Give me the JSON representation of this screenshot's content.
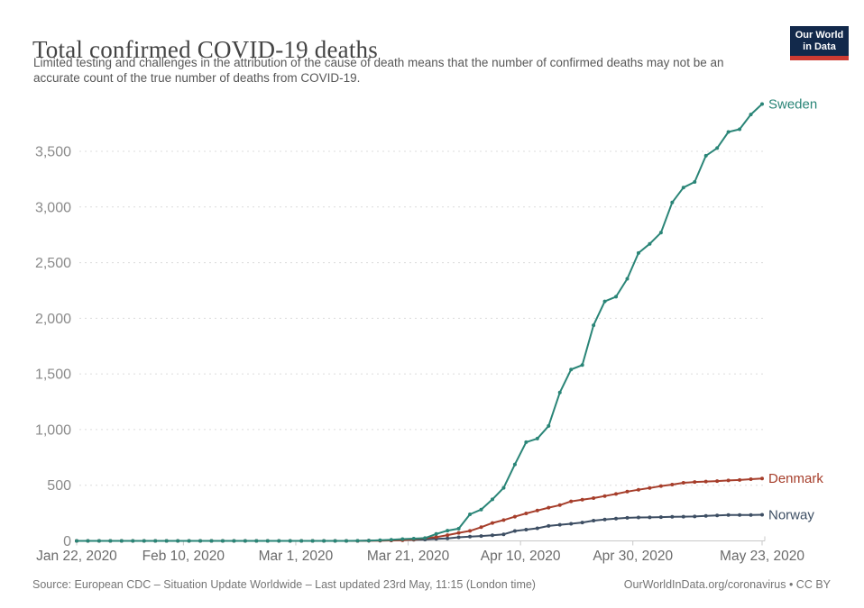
{
  "header": {
    "title": "Total confirmed COVID-19 deaths",
    "subtitle": "Limited testing and challenges in the attribution of the cause of death means that the number of confirmed deaths may not be an accurate count of the true number of deaths from COVID-19."
  },
  "logo": {
    "line1": "Our World",
    "line2": "in Data",
    "bg_color": "#12294B",
    "stripe_color": "#CE3B32"
  },
  "footer": {
    "source": "Source: European CDC – Situation Update Worldwide – Last updated 23rd May, 11:15 (London time)",
    "attribution": "OurWorldInData.org/coronavirus • CC BY"
  },
  "chart_data": {
    "type": "line",
    "title": "Total confirmed COVID-19 deaths",
    "xlabel": "",
    "ylabel": "",
    "ylim": [
      0,
      3500
    ],
    "grid": true,
    "legend_position": "end-of-line",
    "y_ticks": [
      0,
      500,
      1000,
      1500,
      2000,
      2500,
      3000,
      3500
    ],
    "y_tick_labels": [
      "0",
      "500",
      "1,000",
      "1,500",
      "2,000",
      "2,500",
      "3,000",
      "3,500"
    ],
    "x_label_dates": [
      "Jan 22, 2020",
      "Feb 10, 2020",
      "Mar 1, 2020",
      "Mar 21, 2020",
      "Apr 10, 2020",
      "Apr 30, 2020",
      "May 23, 2020"
    ],
    "x_label_days": [
      0,
      19,
      39,
      59,
      79,
      99,
      122
    ],
    "x_range_days": [
      0,
      122
    ],
    "days_since_jan22": [
      0,
      2,
      4,
      6,
      8,
      10,
      12,
      14,
      16,
      18,
      20,
      22,
      24,
      26,
      28,
      30,
      32,
      34,
      36,
      38,
      40,
      42,
      44,
      46,
      48,
      50,
      52,
      54,
      56,
      58,
      60,
      62,
      64,
      66,
      68,
      70,
      72,
      74,
      76,
      78,
      80,
      82,
      84,
      86,
      88,
      90,
      92,
      94,
      96,
      98,
      100,
      102,
      104,
      106,
      108,
      110,
      112,
      114,
      116,
      118,
      120,
      122
    ],
    "series": [
      {
        "name": "Sweden",
        "color": "#2A8577",
        "values": [
          0,
          0,
          0,
          0,
          0,
          0,
          0,
          0,
          0,
          0,
          0,
          0,
          0,
          0,
          0,
          0,
          0,
          0,
          0,
          0,
          0,
          0,
          0,
          0,
          0,
          1,
          2,
          6,
          10,
          16,
          20,
          25,
          62,
          92,
          110,
          239,
          282,
          373,
          477,
          687,
          887,
          919,
          1033,
          1333,
          1540,
          1580,
          1937,
          2152,
          2194,
          2355,
          2586,
          2669,
          2769,
          3040,
          3175,
          3225,
          3460,
          3529,
          3674,
          3698,
          3831,
          3925
        ]
      },
      {
        "name": "Denmark",
        "color": "#A63E2B",
        "values": [
          0,
          0,
          0,
          0,
          0,
          0,
          0,
          0,
          0,
          0,
          0,
          0,
          0,
          0,
          0,
          0,
          0,
          0,
          0,
          0,
          0,
          0,
          0,
          0,
          0,
          0,
          1,
          2,
          4,
          6,
          13,
          24,
          34,
          52,
          72,
          90,
          123,
          161,
          187,
          218,
          247,
          273,
          299,
          321,
          355,
          370,
          384,
          403,
          422,
          443,
          460,
          475,
          493,
          506,
          522,
          529,
          533,
          537,
          543,
          547,
          554,
          561
        ]
      },
      {
        "name": "Norway",
        "color": "#3D4E63",
        "values": [
          0,
          0,
          0,
          0,
          0,
          0,
          0,
          0,
          0,
          0,
          0,
          0,
          0,
          0,
          0,
          0,
          0,
          0,
          0,
          0,
          0,
          0,
          0,
          0,
          0,
          0,
          3,
          3,
          4,
          7,
          10,
          12,
          19,
          23,
          32,
          39,
          44,
          50,
          59,
          89,
          101,
          113,
          134,
          145,
          154,
          165,
          182,
          193,
          201,
          207,
          210,
          211,
          214,
          217,
          218,
          219,
          224,
          229,
          232,
          232,
          233,
          235
        ]
      }
    ],
    "style": {
      "grid_color": "#dcdcdc",
      "axis_line_color": "#c8c8c8",
      "y_tick_label_color": "#8a8a8a",
      "x_tick_label_color": "#6b6b6b"
    }
  }
}
